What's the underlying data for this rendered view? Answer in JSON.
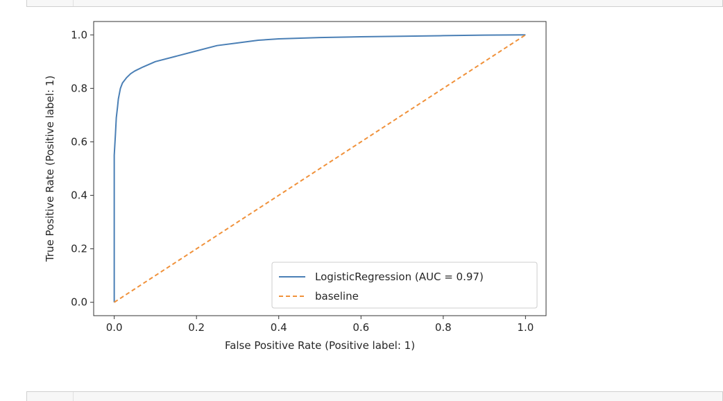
{
  "notebook": {
    "output_cell": "figure"
  },
  "chart_data": {
    "type": "line",
    "title": "",
    "xlabel": "False Positive Rate (Positive label: 1)",
    "ylabel": "True Positive Rate (Positive label: 1)",
    "xlim": [
      -0.05,
      1.05
    ],
    "ylim": [
      -0.05,
      1.05
    ],
    "xticks": [
      0.0,
      0.2,
      0.4,
      0.6,
      0.8,
      1.0
    ],
    "yticks": [
      0.0,
      0.2,
      0.4,
      0.6,
      0.8,
      1.0
    ],
    "xtick_labels": [
      "0.0",
      "0.2",
      "0.4",
      "0.6",
      "0.8",
      "1.0"
    ],
    "ytick_labels": [
      "0.0",
      "0.2",
      "0.4",
      "0.6",
      "0.8",
      "1.0"
    ],
    "grid": false,
    "legend_position": "lower-right",
    "series": [
      {
        "name": "LogisticRegression (AUC = 0.97)",
        "color": "#4a7fb5",
        "style": "solid",
        "x": [
          0.0,
          0.0,
          0.003,
          0.005,
          0.008,
          0.01,
          0.015,
          0.02,
          0.03,
          0.04,
          0.05,
          0.07,
          0.1,
          0.15,
          0.2,
          0.25,
          0.3,
          0.35,
          0.4,
          0.5,
          0.6,
          0.7,
          0.8,
          0.9,
          1.0
        ],
        "y": [
          0.0,
          0.55,
          0.63,
          0.69,
          0.73,
          0.76,
          0.8,
          0.82,
          0.84,
          0.855,
          0.865,
          0.88,
          0.9,
          0.92,
          0.94,
          0.96,
          0.97,
          0.98,
          0.985,
          0.99,
          0.993,
          0.995,
          0.997,
          0.999,
          1.0
        ]
      },
      {
        "name": "baseline",
        "color": "#f0913a",
        "style": "dashed",
        "x": [
          0.0,
          1.0
        ],
        "y": [
          0.0,
          1.0
        ]
      }
    ]
  }
}
